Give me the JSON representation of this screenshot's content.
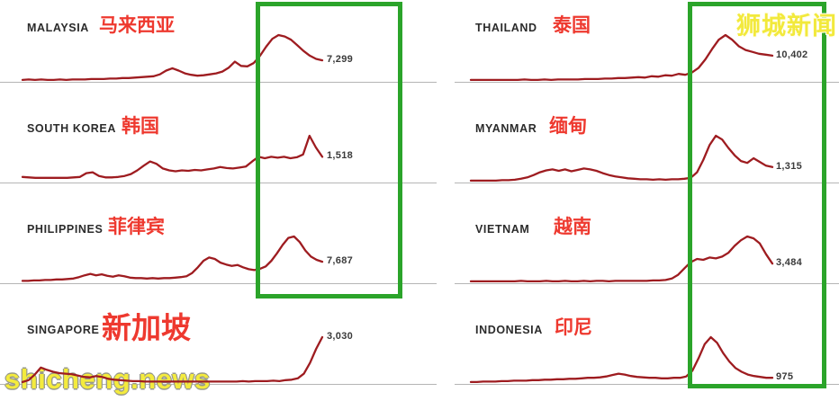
{
  "colors": {
    "line": "#9e1c20",
    "highlight_green": "#2ba42a",
    "label_red": "#ee392f",
    "watermark_yellow": "#f4eb3d",
    "country_label": "#2b2b2b",
    "value_label": "#3a3a3a",
    "baseline_grey": "#b5b5b5"
  },
  "watermarks": {
    "top_right": "狮城新闻",
    "bottom_left": "shicheng.news"
  },
  "chart_data": {
    "type": "line",
    "layout": "small-multiples, 2 columns x 4 rows of sparklines, grey baseline under each, latest value labeled at line end",
    "series_scale": "values normalized 0-1 relative to each panel's own peak",
    "panels": [
      {
        "country": "MALAYSIA",
        "country_cn": "马来西亚",
        "latest_value": "7,299",
        "latest_value_num": 7299,
        "column": "left",
        "row": 0,
        "series": [
          0.04,
          0.05,
          0.04,
          0.05,
          0.04,
          0.04,
          0.05,
          0.04,
          0.05,
          0.05,
          0.05,
          0.06,
          0.06,
          0.06,
          0.07,
          0.07,
          0.08,
          0.08,
          0.09,
          0.1,
          0.11,
          0.12,
          0.16,
          0.24,
          0.29,
          0.24,
          0.18,
          0.15,
          0.13,
          0.14,
          0.16,
          0.18,
          0.22,
          0.3,
          0.43,
          0.34,
          0.33,
          0.4,
          0.55,
          0.75,
          0.92,
          1.0,
          0.97,
          0.9,
          0.78,
          0.66,
          0.56,
          0.49,
          0.46
        ]
      },
      {
        "country": "SOUTH KOREA",
        "country_cn": "韩国",
        "latest_value": "1,518",
        "latest_value_num": 1518,
        "column": "left",
        "row": 1,
        "series": [
          0.12,
          0.11,
          0.1,
          0.1,
          0.1,
          0.1,
          0.1,
          0.1,
          0.11,
          0.12,
          0.2,
          0.22,
          0.14,
          0.11,
          0.11,
          0.12,
          0.14,
          0.18,
          0.26,
          0.36,
          0.45,
          0.4,
          0.3,
          0.26,
          0.24,
          0.26,
          0.25,
          0.27,
          0.26,
          0.28,
          0.3,
          0.33,
          0.31,
          0.3,
          0.32,
          0.34,
          0.45,
          0.55,
          0.52,
          0.55,
          0.53,
          0.55,
          0.52,
          0.54,
          0.6,
          1.0,
          0.75,
          0.55
        ]
      },
      {
        "country": "PHILIPPINES",
        "country_cn": "菲律宾",
        "latest_value": "7,687",
        "latest_value_num": 7687,
        "column": "left",
        "row": 2,
        "series": [
          0.05,
          0.05,
          0.06,
          0.06,
          0.07,
          0.07,
          0.08,
          0.08,
          0.09,
          0.1,
          0.13,
          0.17,
          0.2,
          0.17,
          0.19,
          0.16,
          0.14,
          0.17,
          0.15,
          0.12,
          0.11,
          0.11,
          0.1,
          0.11,
          0.1,
          0.11,
          0.11,
          0.12,
          0.13,
          0.15,
          0.22,
          0.34,
          0.48,
          0.55,
          0.52,
          0.44,
          0.4,
          0.37,
          0.39,
          0.34,
          0.3,
          0.28,
          0.31,
          0.36,
          0.48,
          0.64,
          0.82,
          0.97,
          1.0,
          0.88,
          0.7,
          0.57,
          0.5,
          0.46
        ]
      },
      {
        "country": "SINGAPORE",
        "country_cn": "新加坡",
        "latest_value": "3,030",
        "latest_value_num": 3030,
        "column": "left",
        "row": 3,
        "series": [
          0.04,
          0.08,
          0.2,
          0.35,
          0.3,
          0.26,
          0.23,
          0.22,
          0.21,
          0.18,
          0.15,
          0.14,
          0.17,
          0.15,
          0.11,
          0.09,
          0.08,
          0.07,
          0.06,
          0.06,
          0.05,
          0.05,
          0.05,
          0.05,
          0.05,
          0.05,
          0.05,
          0.05,
          0.05,
          0.05,
          0.05,
          0.05,
          0.05,
          0.05,
          0.05,
          0.05,
          0.06,
          0.05,
          0.06,
          0.06,
          0.06,
          0.07,
          0.06,
          0.08,
          0.09,
          0.12,
          0.22,
          0.45,
          0.75,
          1.0
        ]
      },
      {
        "country": "THAILAND",
        "country_cn": "泰国",
        "latest_value": "10,402",
        "latest_value_num": 10402,
        "column": "right",
        "row": 0,
        "series": [
          0.04,
          0.04,
          0.04,
          0.04,
          0.04,
          0.04,
          0.04,
          0.04,
          0.05,
          0.04,
          0.04,
          0.05,
          0.04,
          0.05,
          0.05,
          0.05,
          0.05,
          0.06,
          0.06,
          0.06,
          0.07,
          0.07,
          0.08,
          0.08,
          0.09,
          0.1,
          0.09,
          0.12,
          0.11,
          0.14,
          0.13,
          0.17,
          0.15,
          0.2,
          0.3,
          0.48,
          0.7,
          0.9,
          1.0,
          0.9,
          0.76,
          0.68,
          0.64,
          0.6,
          0.58,
          0.56
        ]
      },
      {
        "country": "MYANMAR",
        "country_cn": "缅甸",
        "latest_value": "1,315",
        "latest_value_num": 1315,
        "column": "right",
        "row": 1,
        "series": [
          0.04,
          0.04,
          0.04,
          0.04,
          0.04,
          0.05,
          0.05,
          0.06,
          0.08,
          0.11,
          0.16,
          0.22,
          0.26,
          0.28,
          0.25,
          0.28,
          0.24,
          0.27,
          0.3,
          0.28,
          0.25,
          0.2,
          0.16,
          0.13,
          0.11,
          0.09,
          0.08,
          0.07,
          0.07,
          0.06,
          0.07,
          0.06,
          0.07,
          0.07,
          0.08,
          0.1,
          0.22,
          0.48,
          0.8,
          1.0,
          0.92,
          0.74,
          0.58,
          0.46,
          0.42,
          0.52,
          0.44,
          0.36,
          0.33
        ]
      },
      {
        "country": "VIETNAM",
        "country_cn": "越南",
        "latest_value": "3,484",
        "latest_value_num": 3484,
        "column": "right",
        "row": 2,
        "series": [
          0.04,
          0.04,
          0.04,
          0.04,
          0.04,
          0.04,
          0.04,
          0.04,
          0.05,
          0.04,
          0.04,
          0.04,
          0.05,
          0.04,
          0.04,
          0.05,
          0.04,
          0.04,
          0.05,
          0.04,
          0.05,
          0.05,
          0.04,
          0.05,
          0.05,
          0.05,
          0.05,
          0.05,
          0.05,
          0.06,
          0.06,
          0.07,
          0.1,
          0.18,
          0.32,
          0.45,
          0.52,
          0.5,
          0.55,
          0.53,
          0.57,
          0.65,
          0.8,
          0.92,
          1.0,
          0.96,
          0.85,
          0.62,
          0.42
        ]
      },
      {
        "country": "INDONESIA",
        "country_cn": "印尼",
        "latest_value": "975",
        "latest_value_num": 975,
        "column": "right",
        "row": 3,
        "series": [
          0.04,
          0.04,
          0.05,
          0.05,
          0.05,
          0.06,
          0.06,
          0.07,
          0.07,
          0.07,
          0.08,
          0.08,
          0.09,
          0.09,
          0.1,
          0.1,
          0.11,
          0.11,
          0.12,
          0.13,
          0.13,
          0.14,
          0.16,
          0.19,
          0.22,
          0.2,
          0.17,
          0.15,
          0.14,
          0.13,
          0.13,
          0.12,
          0.12,
          0.13,
          0.13,
          0.16,
          0.28,
          0.55,
          0.85,
          1.0,
          0.88,
          0.66,
          0.48,
          0.34,
          0.26,
          0.2,
          0.17,
          0.15,
          0.13,
          0.13
        ]
      }
    ]
  }
}
